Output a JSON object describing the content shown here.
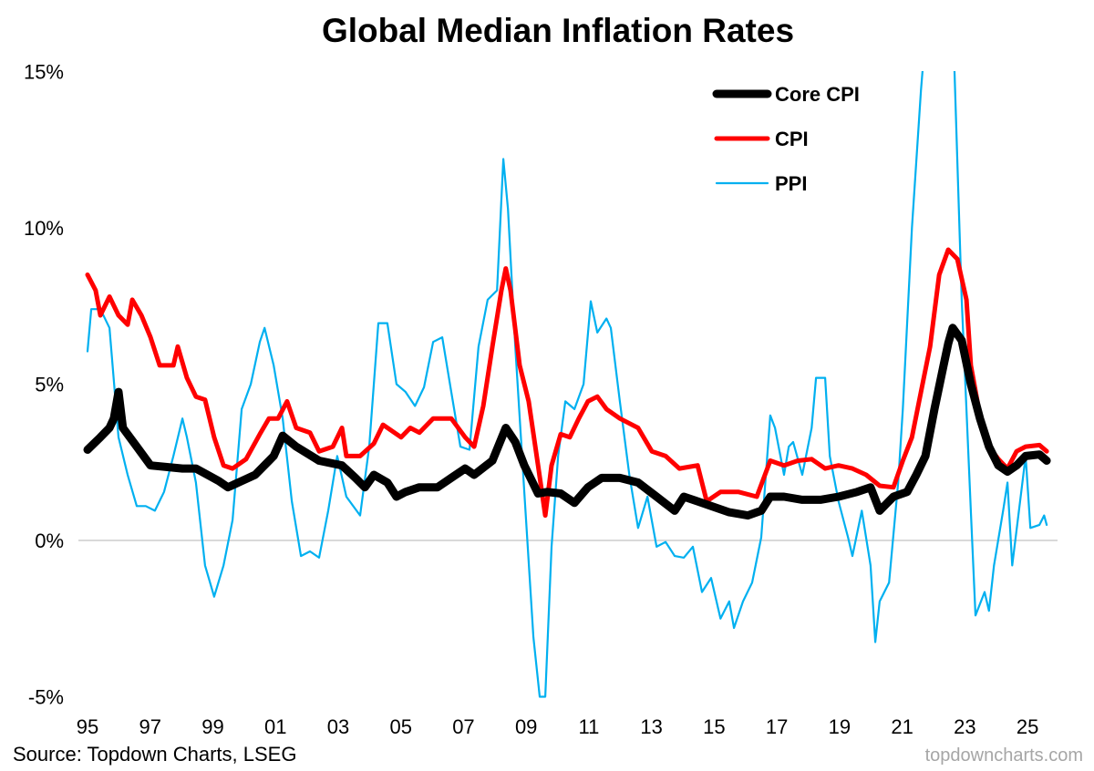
{
  "chart_data": {
    "type": "line",
    "title": "Global Median Inflation Rates",
    "source": "Source: Topdown Charts, LSEG",
    "watermark": "topdowncharts.com",
    "xlabel": "",
    "ylabel": "",
    "xlim": [
      1995,
      2025.7
    ],
    "ylim": [
      -5,
      15
    ],
    "x_ticks": [
      1995,
      1997,
      1999,
      2001,
      2003,
      2005,
      2007,
      2009,
      2011,
      2013,
      2015,
      2017,
      2019,
      2021,
      2023,
      2025
    ],
    "x_tick_labels": [
      "95",
      "97",
      "99",
      "01",
      "03",
      "05",
      "07",
      "09",
      "11",
      "13",
      "15",
      "17",
      "19",
      "21",
      "23",
      "25"
    ],
    "y_ticks": [
      -5,
      0,
      5,
      10,
      15
    ],
    "y_tick_labels": [
      "-5%",
      "0%",
      "5%",
      "10%",
      "15%"
    ],
    "grid": false,
    "zero_line": true,
    "legend_position": "top-right",
    "series": [
      {
        "name": "Core CPI",
        "color": "#000000",
        "points": [
          [
            1995.0,
            2.9
          ],
          [
            1995.41,
            3.3
          ],
          [
            1995.7,
            3.6
          ],
          [
            1995.84,
            3.9
          ],
          [
            1995.99,
            4.75
          ],
          [
            1996.13,
            3.6
          ],
          [
            1996.57,
            3.0
          ],
          [
            1997.01,
            2.4
          ],
          [
            1998.03,
            2.3
          ],
          [
            1998.46,
            2.3
          ],
          [
            1999.19,
            1.9
          ],
          [
            1999.48,
            1.7
          ],
          [
            1999.92,
            1.9
          ],
          [
            2000.35,
            2.1
          ],
          [
            2000.94,
            2.7
          ],
          [
            2001.23,
            3.35
          ],
          [
            2001.66,
            3.0
          ],
          [
            2002.39,
            2.55
          ],
          [
            2003.12,
            2.4
          ],
          [
            2003.55,
            2.0
          ],
          [
            2003.85,
            1.7
          ],
          [
            2004.14,
            2.1
          ],
          [
            2004.57,
            1.85
          ],
          [
            2004.86,
            1.4
          ],
          [
            2005.15,
            1.55
          ],
          [
            2005.59,
            1.7
          ],
          [
            2006.17,
            1.7
          ],
          [
            2006.61,
            2.0
          ],
          [
            2007.05,
            2.3
          ],
          [
            2007.34,
            2.1
          ],
          [
            2007.92,
            2.55
          ],
          [
            2008.35,
            3.6
          ],
          [
            2008.65,
            3.15
          ],
          [
            2008.94,
            2.4
          ],
          [
            2009.38,
            1.5
          ],
          [
            2009.67,
            1.55
          ],
          [
            2010.1,
            1.5
          ],
          [
            2010.54,
            1.2
          ],
          [
            2010.97,
            1.7
          ],
          [
            2011.41,
            2.0
          ],
          [
            2011.99,
            2.0
          ],
          [
            2012.57,
            1.85
          ],
          [
            2013.16,
            1.4
          ],
          [
            2013.74,
            0.95
          ],
          [
            2014.03,
            1.4
          ],
          [
            2014.47,
            1.25
          ],
          [
            2014.9,
            1.1
          ],
          [
            2015.48,
            0.9
          ],
          [
            2016.07,
            0.8
          ],
          [
            2016.5,
            0.95
          ],
          [
            2016.79,
            1.4
          ],
          [
            2017.23,
            1.4
          ],
          [
            2017.81,
            1.3
          ],
          [
            2018.39,
            1.3
          ],
          [
            2018.97,
            1.4
          ],
          [
            2019.56,
            1.55
          ],
          [
            2019.99,
            1.7
          ],
          [
            2020.28,
            0.95
          ],
          [
            2020.72,
            1.4
          ],
          [
            2021.16,
            1.55
          ],
          [
            2021.45,
            2.1
          ],
          [
            2021.74,
            2.7
          ],
          [
            2022.03,
            4.2
          ],
          [
            2022.32,
            5.6
          ],
          [
            2022.47,
            6.3
          ],
          [
            2022.61,
            6.8
          ],
          [
            2022.9,
            6.4
          ],
          [
            2023.19,
            5.0
          ],
          [
            2023.48,
            3.9
          ],
          [
            2023.77,
            3.0
          ],
          [
            2024.07,
            2.4
          ],
          [
            2024.36,
            2.2
          ],
          [
            2024.65,
            2.4
          ],
          [
            2024.94,
            2.7
          ],
          [
            2025.38,
            2.75
          ],
          [
            2025.61,
            2.55
          ]
        ]
      },
      {
        "name": "CPI",
        "color": "#ff0000",
        "points": [
          [
            1995.0,
            8.5
          ],
          [
            1995.26,
            8.0
          ],
          [
            1995.41,
            7.2
          ],
          [
            1995.7,
            7.8
          ],
          [
            1995.99,
            7.2
          ],
          [
            1996.28,
            6.9
          ],
          [
            1996.43,
            7.7
          ],
          [
            1996.72,
            7.2
          ],
          [
            1997.01,
            6.5
          ],
          [
            1997.3,
            5.6
          ],
          [
            1997.74,
            5.6
          ],
          [
            1997.88,
            6.2
          ],
          [
            1998.17,
            5.2
          ],
          [
            1998.46,
            4.6
          ],
          [
            1998.75,
            4.5
          ],
          [
            1999.04,
            3.3
          ],
          [
            1999.34,
            2.4
          ],
          [
            1999.63,
            2.3
          ],
          [
            2000.06,
            2.6
          ],
          [
            2000.5,
            3.4
          ],
          [
            2000.79,
            3.9
          ],
          [
            2001.08,
            3.9
          ],
          [
            2001.37,
            4.45
          ],
          [
            2001.66,
            3.6
          ],
          [
            2002.1,
            3.45
          ],
          [
            2002.39,
            2.85
          ],
          [
            2002.83,
            3.0
          ],
          [
            2003.12,
            3.6
          ],
          [
            2003.26,
            2.7
          ],
          [
            2003.7,
            2.7
          ],
          [
            2004.14,
            3.1
          ],
          [
            2004.43,
            3.7
          ],
          [
            2005.01,
            3.3
          ],
          [
            2005.3,
            3.6
          ],
          [
            2005.59,
            3.45
          ],
          [
            2006.03,
            3.9
          ],
          [
            2006.61,
            3.9
          ],
          [
            2007.05,
            3.3
          ],
          [
            2007.34,
            3.0
          ],
          [
            2007.63,
            4.3
          ],
          [
            2007.92,
            6.2
          ],
          [
            2008.21,
            8.0
          ],
          [
            2008.35,
            8.7
          ],
          [
            2008.5,
            8.0
          ],
          [
            2008.79,
            5.6
          ],
          [
            2009.08,
            4.45
          ],
          [
            2009.38,
            2.4
          ],
          [
            2009.61,
            0.8
          ],
          [
            2009.81,
            2.4
          ],
          [
            2010.1,
            3.4
          ],
          [
            2010.39,
            3.3
          ],
          [
            2010.68,
            3.9
          ],
          [
            2010.97,
            4.45
          ],
          [
            2011.27,
            4.6
          ],
          [
            2011.56,
            4.2
          ],
          [
            2011.99,
            3.9
          ],
          [
            2012.57,
            3.6
          ],
          [
            2013.01,
            2.85
          ],
          [
            2013.45,
            2.7
          ],
          [
            2013.89,
            2.3
          ],
          [
            2014.47,
            2.4
          ],
          [
            2014.76,
            1.25
          ],
          [
            2015.2,
            1.55
          ],
          [
            2015.78,
            1.55
          ],
          [
            2016.36,
            1.4
          ],
          [
            2016.79,
            2.55
          ],
          [
            2017.23,
            2.4
          ],
          [
            2017.67,
            2.55
          ],
          [
            2018.11,
            2.6
          ],
          [
            2018.54,
            2.3
          ],
          [
            2018.97,
            2.4
          ],
          [
            2019.41,
            2.3
          ],
          [
            2019.85,
            2.1
          ],
          [
            2020.28,
            1.75
          ],
          [
            2020.72,
            1.7
          ],
          [
            2021.02,
            2.55
          ],
          [
            2021.31,
            3.3
          ],
          [
            2021.6,
            4.75
          ],
          [
            2021.89,
            6.2
          ],
          [
            2022.18,
            8.5
          ],
          [
            2022.47,
            9.3
          ],
          [
            2022.76,
            9.0
          ],
          [
            2023.05,
            7.7
          ],
          [
            2023.19,
            5.6
          ],
          [
            2023.48,
            4.0
          ],
          [
            2023.77,
            3.0
          ],
          [
            2024.07,
            2.6
          ],
          [
            2024.36,
            2.3
          ],
          [
            2024.65,
            2.85
          ],
          [
            2024.94,
            3.0
          ],
          [
            2025.38,
            3.05
          ],
          [
            2025.61,
            2.85
          ]
        ]
      },
      {
        "name": "PPI",
        "color": "#00b0f0",
        "points": [
          [
            1995.0,
            6.05
          ],
          [
            1995.12,
            7.4
          ],
          [
            1995.41,
            7.4
          ],
          [
            1995.7,
            6.8
          ],
          [
            1995.99,
            3.3
          ],
          [
            1996.28,
            2.1
          ],
          [
            1996.57,
            1.1
          ],
          [
            1996.86,
            1.1
          ],
          [
            1997.15,
            0.95
          ],
          [
            1997.44,
            1.55
          ],
          [
            1997.74,
            2.7
          ],
          [
            1998.03,
            3.9
          ],
          [
            1998.17,
            3.3
          ],
          [
            1998.46,
            1.85
          ],
          [
            1998.75,
            -0.8
          ],
          [
            1999.04,
            -1.8
          ],
          [
            1999.34,
            -0.8
          ],
          [
            1999.63,
            0.65
          ],
          [
            1999.92,
            4.2
          ],
          [
            2000.21,
            5.0
          ],
          [
            2000.5,
            6.35
          ],
          [
            2000.65,
            6.8
          ],
          [
            2000.94,
            5.6
          ],
          [
            2001.23,
            3.9
          ],
          [
            2001.52,
            1.25
          ],
          [
            2001.81,
            -0.5
          ],
          [
            2002.1,
            -0.35
          ],
          [
            2002.39,
            -0.55
          ],
          [
            2002.68,
            0.95
          ],
          [
            2002.97,
            2.7
          ],
          [
            2003.26,
            1.4
          ],
          [
            2003.7,
            0.8
          ],
          [
            2003.99,
            3.0
          ],
          [
            2004.28,
            6.95
          ],
          [
            2004.57,
            6.95
          ],
          [
            2004.86,
            5.0
          ],
          [
            2005.15,
            4.75
          ],
          [
            2005.45,
            4.3
          ],
          [
            2005.74,
            4.9
          ],
          [
            2006.03,
            6.35
          ],
          [
            2006.32,
            6.5
          ],
          [
            2006.61,
            4.75
          ],
          [
            2006.9,
            3.0
          ],
          [
            2007.19,
            2.9
          ],
          [
            2007.48,
            6.2
          ],
          [
            2007.77,
            7.7
          ],
          [
            2008.07,
            8.0
          ],
          [
            2008.27,
            12.2
          ],
          [
            2008.42,
            10.6
          ],
          [
            2008.65,
            6.2
          ],
          [
            2008.94,
            1.55
          ],
          [
            2009.23,
            -3.1
          ],
          [
            2009.43,
            -5.0
          ],
          [
            2009.61,
            -5.0
          ],
          [
            2009.81,
            -0.2
          ],
          [
            2010.02,
            2.7
          ],
          [
            2010.25,
            4.45
          ],
          [
            2010.54,
            4.2
          ],
          [
            2010.83,
            5.0
          ],
          [
            2011.06,
            7.65
          ],
          [
            2011.27,
            6.65
          ],
          [
            2011.56,
            7.1
          ],
          [
            2011.7,
            6.8
          ],
          [
            2011.99,
            4.45
          ],
          [
            2012.29,
            2.1
          ],
          [
            2012.57,
            0.4
          ],
          [
            2012.87,
            1.4
          ],
          [
            2013.16,
            -0.2
          ],
          [
            2013.45,
            -0.05
          ],
          [
            2013.74,
            -0.5
          ],
          [
            2014.03,
            -0.55
          ],
          [
            2014.32,
            -0.2
          ],
          [
            2014.61,
            -1.65
          ],
          [
            2014.9,
            -1.2
          ],
          [
            2015.2,
            -2.5
          ],
          [
            2015.48,
            -1.95
          ],
          [
            2015.63,
            -2.8
          ],
          [
            2015.92,
            -1.95
          ],
          [
            2016.21,
            -1.35
          ],
          [
            2016.5,
            0.1
          ],
          [
            2016.79,
            4.0
          ],
          [
            2016.94,
            3.6
          ],
          [
            2017.23,
            2.1
          ],
          [
            2017.38,
            3.0
          ],
          [
            2017.52,
            3.15
          ],
          [
            2017.81,
            2.1
          ],
          [
            2018.11,
            3.6
          ],
          [
            2018.25,
            5.2
          ],
          [
            2018.54,
            5.2
          ],
          [
            2018.69,
            2.7
          ],
          [
            2018.97,
            1.25
          ],
          [
            2019.27,
            0.1
          ],
          [
            2019.41,
            -0.5
          ],
          [
            2019.71,
            0.95
          ],
          [
            2019.99,
            -0.8
          ],
          [
            2020.14,
            -3.25
          ],
          [
            2020.28,
            -1.95
          ],
          [
            2020.58,
            -1.35
          ],
          [
            2020.87,
            1.85
          ],
          [
            2021.02,
            4.2
          ],
          [
            2021.31,
            10.0
          ],
          [
            2021.6,
            14.4
          ],
          [
            2021.89,
            18.0
          ],
          [
            2022.18,
            20.0
          ],
          [
            2022.47,
            17.0
          ],
          [
            2022.67,
            15.0
          ],
          [
            2022.9,
            7.7
          ],
          [
            2023.19,
            0.95
          ],
          [
            2023.34,
            -2.4
          ],
          [
            2023.63,
            -1.65
          ],
          [
            2023.77,
            -2.25
          ],
          [
            2023.93,
            -0.8
          ],
          [
            2024.22,
            0.95
          ],
          [
            2024.36,
            1.85
          ],
          [
            2024.51,
            -0.8
          ],
          [
            2024.8,
            1.55
          ],
          [
            2024.94,
            2.7
          ],
          [
            2025.09,
            0.4
          ],
          [
            2025.38,
            0.5
          ],
          [
            2025.53,
            0.8
          ],
          [
            2025.61,
            0.5
          ]
        ]
      }
    ]
  }
}
